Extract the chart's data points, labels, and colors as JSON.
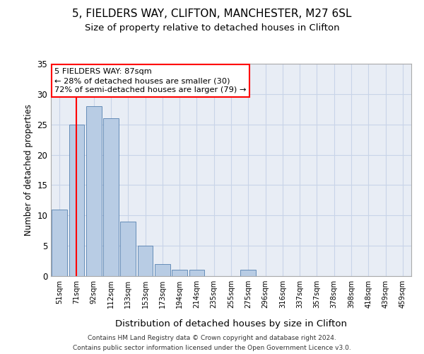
{
  "title1": "5, FIELDERS WAY, CLIFTON, MANCHESTER, M27 6SL",
  "title2": "Size of property relative to detached houses in Clifton",
  "xlabel": "Distribution of detached houses by size in Clifton",
  "ylabel": "Number of detached properties",
  "categories": [
    "51sqm",
    "71sqm",
    "92sqm",
    "112sqm",
    "133sqm",
    "153sqm",
    "173sqm",
    "194sqm",
    "214sqm",
    "235sqm",
    "255sqm",
    "275sqm",
    "296sqm",
    "316sqm",
    "337sqm",
    "357sqm",
    "378sqm",
    "398sqm",
    "418sqm",
    "439sqm",
    "459sqm"
  ],
  "values": [
    11,
    25,
    28,
    26,
    9,
    5,
    2,
    1,
    1,
    0,
    0,
    1,
    0,
    0,
    0,
    0,
    0,
    0,
    0,
    0,
    0
  ],
  "bar_color": "#b8cce4",
  "bar_edge_color": "#5580b0",
  "ylim": [
    0,
    35
  ],
  "yticks": [
    0,
    5,
    10,
    15,
    20,
    25,
    30,
    35
  ],
  "property_line_x": 1,
  "annotation_title": "5 FIELDERS WAY: 87sqm",
  "annotation_line1": "← 28% of detached houses are smaller (30)",
  "annotation_line2": "72% of semi-detached houses are larger (79) →",
  "footer1": "Contains HM Land Registry data © Crown copyright and database right 2024.",
  "footer2": "Contains public sector information licensed under the Open Government Licence v3.0.",
  "bg_color": "#ffffff",
  "plot_bg_color": "#e8edf5",
  "grid_color": "#c8d4e8"
}
